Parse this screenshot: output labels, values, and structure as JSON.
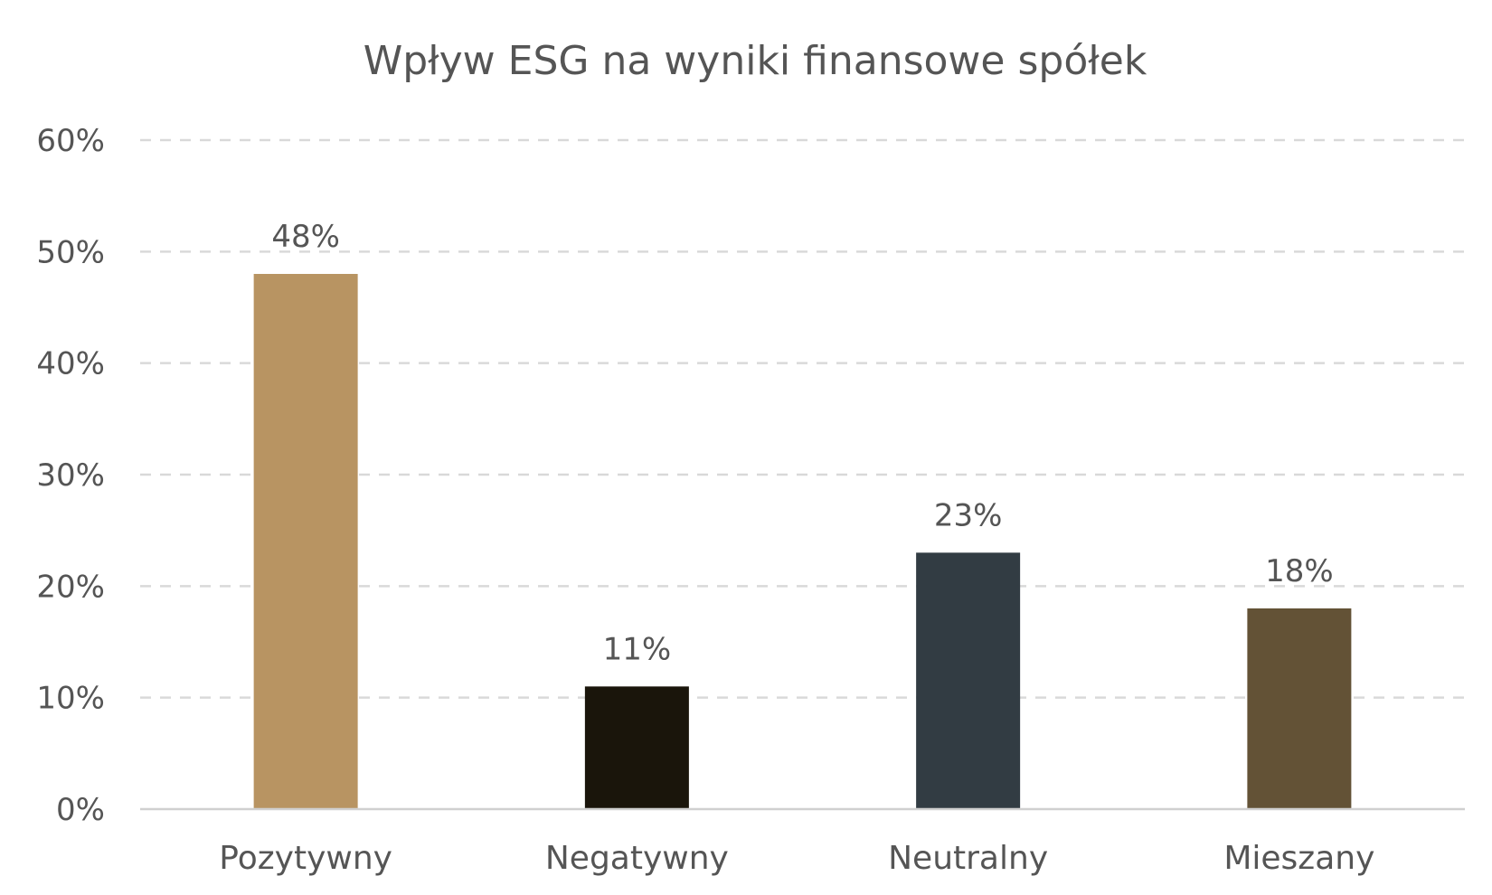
{
  "chart_data": {
    "type": "bar",
    "title": "Wpływ ESG na wyniki finansowe spółek",
    "xlabel": "",
    "ylabel": "",
    "categories": [
      "Pozytywny",
      "Negatywny",
      "Neutralny",
      "Mieszany"
    ],
    "values": [
      48,
      11,
      23,
      18
    ],
    "data_labels": [
      "48%",
      "11%",
      "23%",
      "18%"
    ],
    "bar_colors": [
      "#b89462",
      "#1a150b",
      "#323c43",
      "#635236"
    ],
    "ylim": [
      0,
      60
    ],
    "yticks": [
      0,
      10,
      20,
      30,
      40,
      50,
      60
    ],
    "ytick_labels": [
      "0%",
      "10%",
      "20%",
      "30%",
      "40%",
      "50%",
      "60%"
    ],
    "grid": true,
    "legend": "none"
  }
}
